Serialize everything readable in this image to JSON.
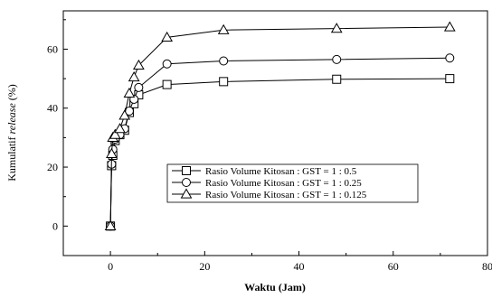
{
  "chart_data": {
    "type": "line",
    "title": "",
    "xlabel": "Waktu (Jam)",
    "ylabel_prefix": "Kumulatif ",
    "ylabel_italic": "release",
    "ylabel_suffix": " (%)",
    "xlim": [
      -10,
      80
    ],
    "ylim": [
      -10,
      73
    ],
    "xticks": [
      0,
      20,
      40,
      60,
      80
    ],
    "yticks": [
      0,
      20,
      40,
      60
    ],
    "grid": false,
    "legend_position": "center-right",
    "series": [
      {
        "name": "Rasio Volume Kitosan : GST = 1 : 0.5",
        "marker": "square",
        "x": [
          0,
          0.25,
          0.5,
          1,
          2,
          3,
          4,
          5,
          6,
          12,
          24,
          48,
          72
        ],
        "y": [
          0,
          20.5,
          24,
          29,
          31,
          32.5,
          38.5,
          41.5,
          44.5,
          48,
          49,
          49.8,
          50
        ]
      },
      {
        "name": "Rasio Volume Kitosan : GST = 1 : 0.25",
        "marker": "circle",
        "x": [
          0,
          0.25,
          0.5,
          1,
          2,
          3,
          4,
          5,
          6,
          12,
          24,
          48,
          72
        ],
        "y": [
          0,
          21,
          26,
          29.5,
          31,
          33,
          39,
          43,
          47,
          55,
          56,
          56.5,
          57
        ]
      },
      {
        "name": "Rasio Volume Kitosan : GST = 1 : 0.125",
        "marker": "triangle",
        "x": [
          0,
          0.25,
          0.5,
          1,
          2,
          3,
          4,
          5,
          6,
          12,
          24,
          48,
          72
        ],
        "y": [
          0,
          24.5,
          30,
          31,
          33,
          37.5,
          45,
          50.5,
          54.5,
          64,
          66.5,
          67,
          67.5
        ]
      }
    ]
  }
}
